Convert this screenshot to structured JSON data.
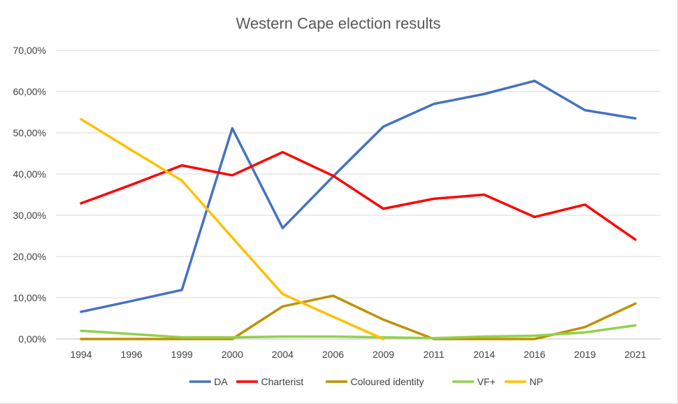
{
  "chart_data": {
    "type": "line",
    "title": "Western Cape election results",
    "categories": [
      "1994",
      "1996",
      "1999",
      "2000",
      "2004",
      "2006",
      "2009",
      "2011",
      "2014",
      "2016",
      "2019",
      "2021"
    ],
    "ylim": [
      0,
      70
    ],
    "yticks": [
      "0,00%",
      "10,00%",
      "20,00%",
      "30,00%",
      "40,00%",
      "50,00%",
      "60,00%",
      "70,00%"
    ],
    "grid": true,
    "legend_position": "bottom",
    "series": [
      {
        "name": "DA",
        "color": "#4472C4",
        "values": [
          6.6,
          9.2,
          11.9,
          51.1,
          26.9,
          39.4,
          51.5,
          57.0,
          59.4,
          62.6,
          55.5,
          53.5
        ]
      },
      {
        "name": "Charterist",
        "color": "#FF0000",
        "values": [
          32.9,
          37.4,
          42.1,
          39.7,
          45.3,
          39.6,
          31.6,
          34.0,
          35.0,
          29.6,
          32.6,
          24.1
        ]
      },
      {
        "name": "Coloured identity",
        "color": "#BF9000",
        "values": [
          0.0,
          0.0,
          0.0,
          0.0,
          7.9,
          10.5,
          4.7,
          0.0,
          0.0,
          0.0,
          2.9,
          8.6
        ]
      },
      {
        "name": "VF+",
        "color": "#92D050",
        "values": [
          2.0,
          1.2,
          0.4,
          0.4,
          0.6,
          0.6,
          0.4,
          0.2,
          0.6,
          0.8,
          1.6,
          3.3
        ]
      },
      {
        "name": "NP",
        "color": "#FFC000",
        "values": [
          53.3,
          45.8,
          38.4,
          24.6,
          10.9,
          5.4,
          0.0,
          null,
          null,
          null,
          null,
          null
        ]
      }
    ]
  }
}
